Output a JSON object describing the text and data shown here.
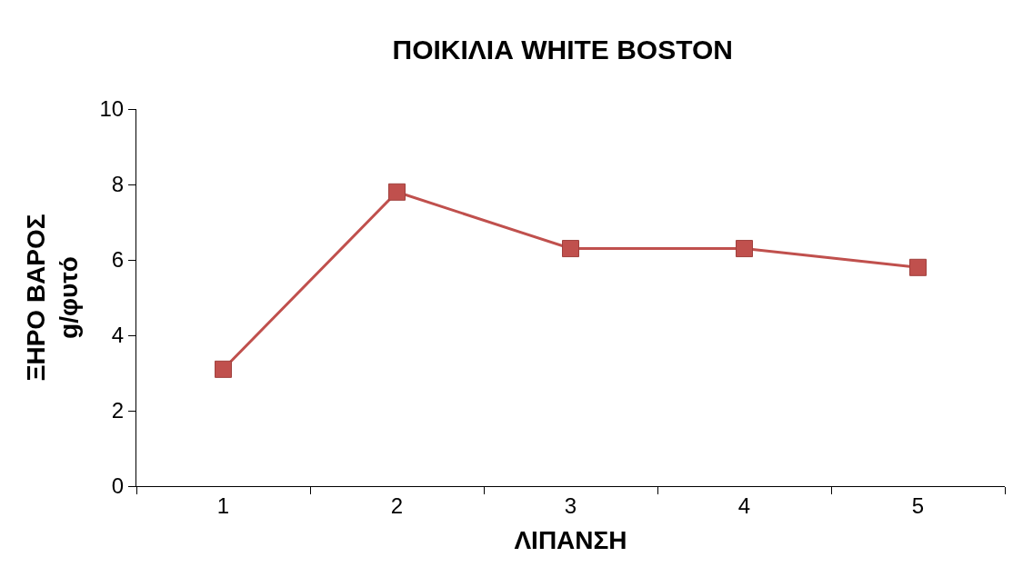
{
  "chart_data": {
    "type": "line",
    "title": "ΠΟΙΚΙΛΙΑ WHITE BOSTON",
    "xlabel": "ΛΙΠΑΝΣΗ",
    "ylabel": "ΞΗΡΟ ΒΑΡΟΣ\ng/φυτό",
    "categories": [
      "1",
      "2",
      "3",
      "4",
      "5"
    ],
    "series": [
      {
        "color": "#c0504d",
        "values": [
          3.1,
          7.8,
          6.3,
          6.3,
          5.8
        ]
      }
    ],
    "ylim": [
      0,
      10
    ],
    "yticks": [
      0,
      2,
      4,
      6,
      8,
      10
    ],
    "legend": false,
    "marker": "square",
    "line_style": "solid"
  }
}
